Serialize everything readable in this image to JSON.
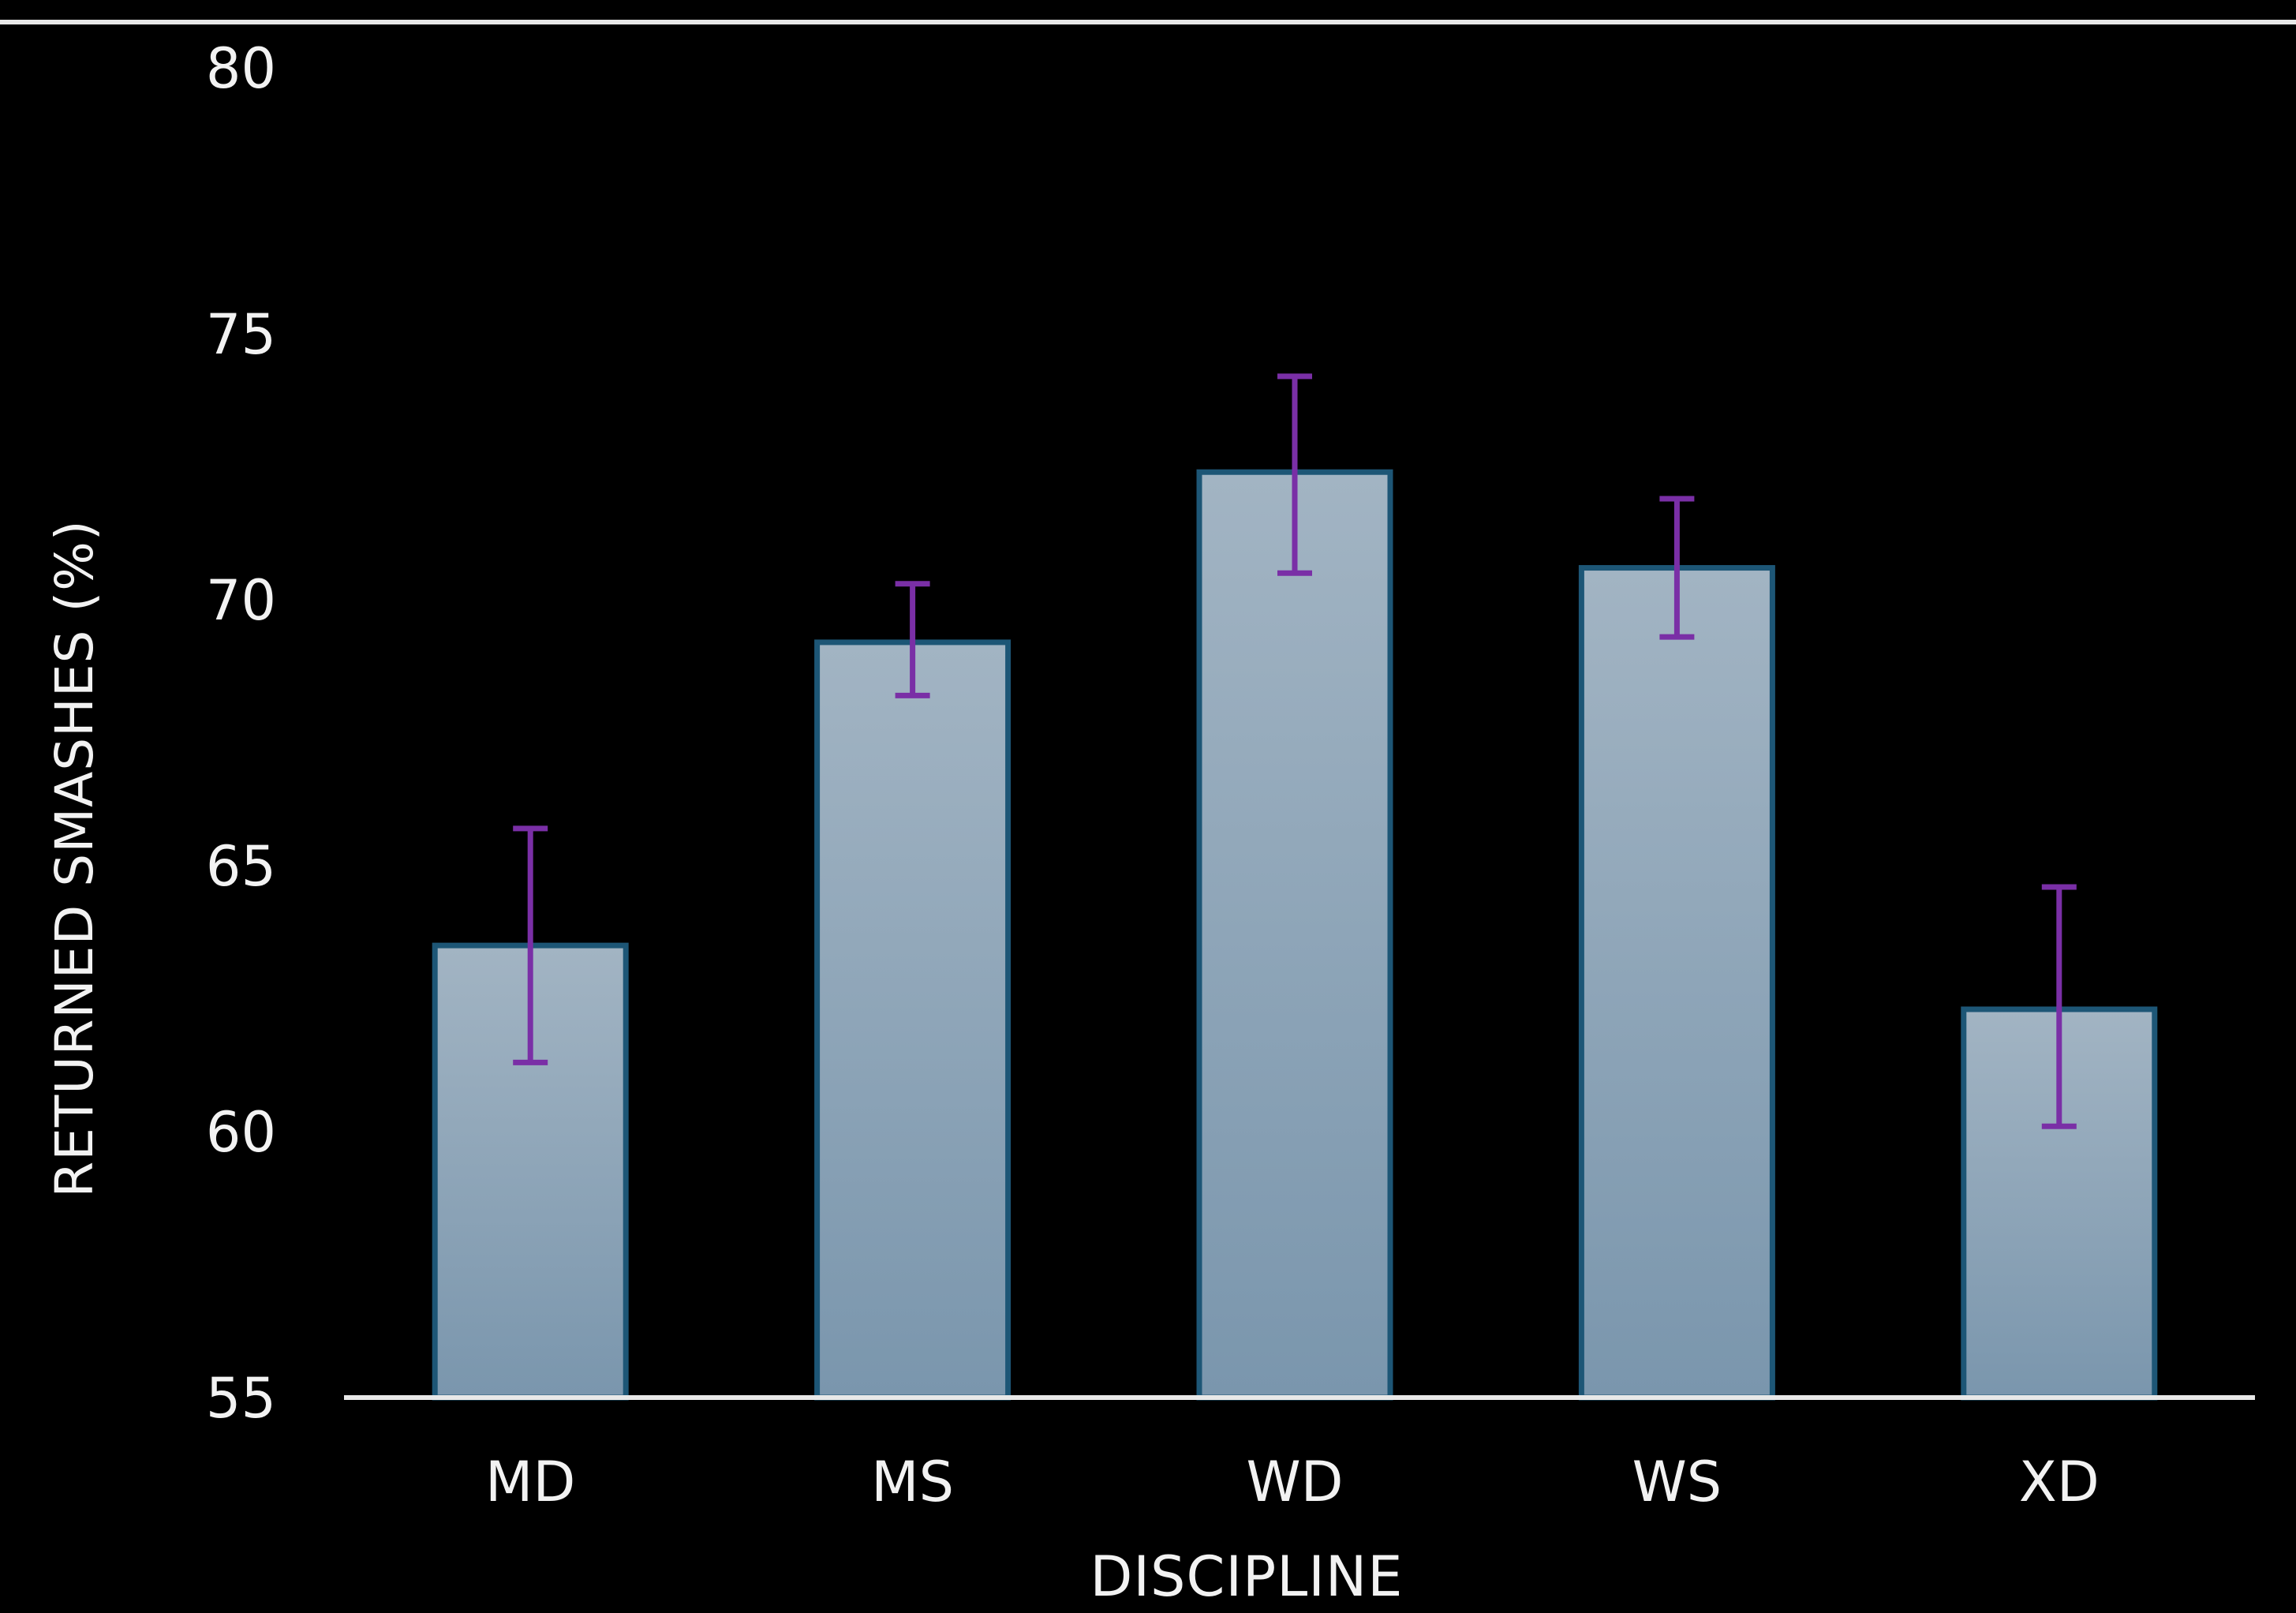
{
  "chart_data": {
    "type": "bar",
    "title": "",
    "xlabel": "DISCIPLINE",
    "ylabel": "RETURNED SMASHES (%)",
    "ylim": [
      55,
      80
    ],
    "yticks": [
      55,
      60,
      65,
      70,
      75,
      80
    ],
    "categories": [
      "MD",
      "MS",
      "WD",
      "WS",
      "XD"
    ],
    "values": [
      63.5,
      69.2,
      72.4,
      70.6,
      62.3
    ],
    "error_bars": [
      {
        "low": 61.3,
        "high": 65.7
      },
      {
        "low": 68.2,
        "high": 70.3
      },
      {
        "low": 70.5,
        "high": 74.2
      },
      {
        "low": 69.3,
        "high": 71.9
      },
      {
        "low": 60.1,
        "high": 64.6
      }
    ],
    "grid": false,
    "legend": "none",
    "colors": {
      "background": "#000000",
      "bar_fill_top": "#a2b4c3",
      "bar_fill_bottom": "#7a96ad",
      "bar_stroke": "#1d5676",
      "error_bar": "#7a2fa6",
      "axis": "#e8e8e8",
      "text": "#f2f2f2"
    }
  }
}
